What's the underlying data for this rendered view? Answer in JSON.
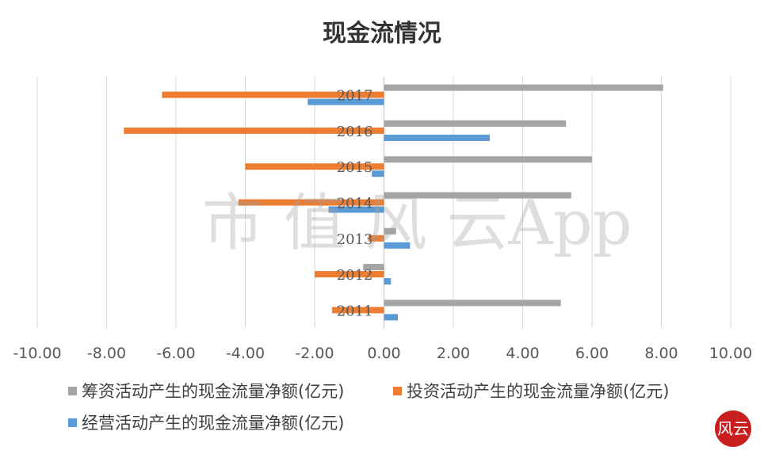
{
  "chart_data": {
    "type": "bar",
    "orientation": "horizontal",
    "title": "现金流情况",
    "categories": [
      "2017",
      "2016",
      "2015",
      "2014",
      "2013",
      "2012",
      "2011"
    ],
    "series": [
      {
        "name": "筹资活动产生的现金流量净额(亿元)",
        "color": "#a5a5a5",
        "values": [
          8.05,
          5.25,
          6.0,
          5.4,
          0.35,
          -0.6,
          5.1
        ]
      },
      {
        "name": "投资活动产生的现金流量净额(亿元)",
        "color": "#ed7d31",
        "values": [
          -6.4,
          -7.5,
          -4.0,
          -4.2,
          -0.45,
          -2.0,
          -1.5
        ]
      },
      {
        "name": "经营活动产生的现金流量净额(亿元)",
        "color": "#5b9bd5",
        "values": [
          -2.2,
          3.05,
          -0.35,
          -1.6,
          0.75,
          0.2,
          0.4
        ]
      }
    ],
    "xlim": [
      -10,
      10
    ],
    "xticks": [
      -10,
      -8,
      -6,
      -4,
      -2,
      0,
      2,
      4,
      6,
      8,
      10
    ],
    "xtick_labels": [
      "-10.00",
      "-8.00",
      "-6.00",
      "-4.00",
      "-2.00",
      "0.00",
      "2.00",
      "4.00",
      "6.00",
      "8.00",
      "10.00"
    ],
    "grid": true,
    "legend_position": "bottom"
  },
  "watermark": "市 值 风 云App",
  "seal": "风云"
}
